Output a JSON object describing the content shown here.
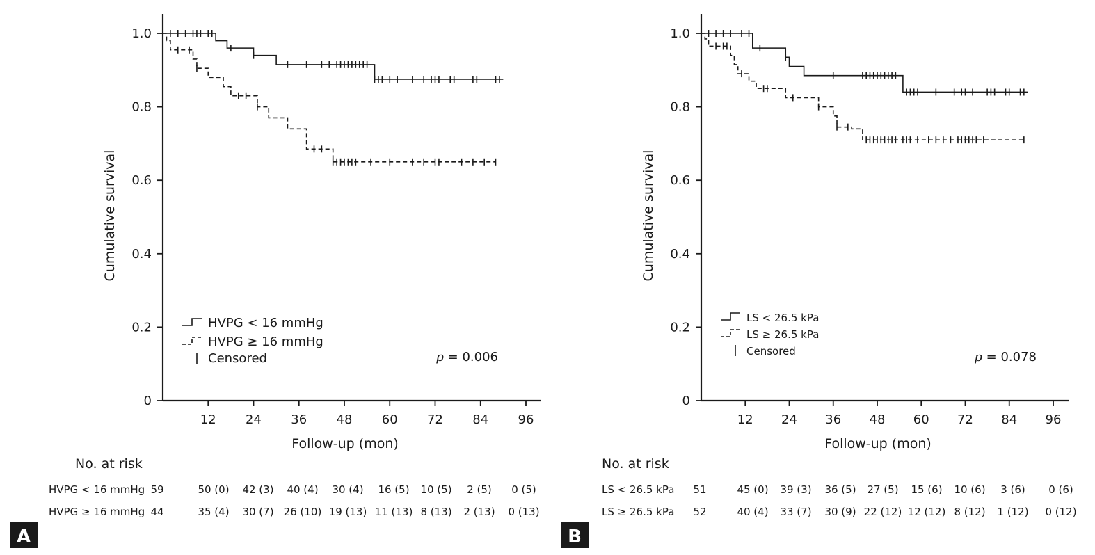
{
  "chart_data": [
    {
      "panel": "A",
      "type": "line",
      "subtype": "kaplan-meier",
      "xlabel": "Follow-up (mon)",
      "ylabel": "Cumulative survival",
      "xlim": [
        0,
        96
      ],
      "ylim": [
        0,
        1.0
      ],
      "xticks": [
        12,
        24,
        36,
        48,
        60,
        72,
        84,
        96
      ],
      "yticks": [
        0,
        0.2,
        0.4,
        0.6,
        0.8,
        1.0
      ],
      "ytick_labels": [
        "0",
        "0.2",
        "0.4",
        "0.6",
        "0.8",
        "1.0"
      ],
      "p_value_label": "p",
      "p_value_text": "= 0.006",
      "legend_position": "bottom-left",
      "legend": [
        "HVPG < 16 mmHg",
        "HVPG ≥ 16 mmHg",
        "Censored"
      ],
      "series": [
        {
          "name": "HVPG < 16 mmHg",
          "style": "solid",
          "steps": [
            [
              0,
              1.0
            ],
            [
              14,
              0.98
            ],
            [
              17,
              0.96
            ],
            [
              24,
              0.94
            ],
            [
              30,
              0.915
            ],
            [
              56,
              0.875
            ],
            [
              90,
              0.875
            ]
          ],
          "censored": [
            2,
            4,
            6,
            8,
            9,
            10,
            12,
            13,
            18,
            24,
            33,
            38,
            42,
            44,
            46,
            47,
            48,
            49,
            50,
            51,
            52,
            53,
            54,
            56,
            57,
            58,
            60,
            62,
            66,
            69,
            71,
            72,
            73,
            76,
            77,
            82,
            83,
            88,
            89
          ]
        },
        {
          "name": "HVPG ≥ 16 mmHg",
          "style": "dashed",
          "steps": [
            [
              0,
              1.0
            ],
            [
              1,
              0.98
            ],
            [
              2,
              0.955
            ],
            [
              8,
              0.93
            ],
            [
              9,
              0.905
            ],
            [
              12,
              0.88
            ],
            [
              16,
              0.855
            ],
            [
              18,
              0.83
            ],
            [
              25,
              0.8
            ],
            [
              28,
              0.77
            ],
            [
              33,
              0.74
            ],
            [
              38,
              0.685
            ],
            [
              45,
              0.65
            ],
            [
              88,
              0.65
            ]
          ],
          "censored": [
            4,
            7,
            9,
            20,
            22,
            25,
            40,
            42,
            45,
            46,
            47,
            48,
            49,
            50,
            51,
            55,
            60,
            66,
            69,
            72,
            73,
            79,
            82,
            85,
            88
          ]
        }
      ],
      "risk_table": {
        "title": "No. at risk",
        "rows": [
          {
            "label": "HVPG < 16 mmHg",
            "values": [
              "59",
              "50 (0)",
              "42 (3)",
              "40 (4)",
              "30 (4)",
              "16 (5)",
              "10 (5)",
              "2 (5)",
              "0 (5)"
            ]
          },
          {
            "label": "HVPG ≥ 16 mmHg",
            "values": [
              "44",
              "35 (4)",
              "30 (7)",
              "26 (10)",
              "19 (13)",
              "11 (13)",
              "8 (13)",
              "2 (13)",
              "0 (13)"
            ]
          }
        ]
      }
    },
    {
      "panel": "B",
      "type": "line",
      "subtype": "kaplan-meier",
      "xlabel": "Follow-up (mon)",
      "ylabel": "Cumulative survival",
      "xlim": [
        0,
        96
      ],
      "ylim": [
        0,
        1.0
      ],
      "xticks": [
        12,
        24,
        36,
        48,
        60,
        72,
        84,
        96
      ],
      "yticks": [
        0,
        0.2,
        0.4,
        0.6,
        0.8,
        1.0
      ],
      "ytick_labels": [
        "0",
        "0.2",
        "0.4",
        "0.6",
        "0.8",
        "1.0"
      ],
      "p_value_label": "p",
      "p_value_text": "= 0.078",
      "legend_position": "bottom-left",
      "legend": [
        "LS < 26.5 kPa",
        "LS ≥ 26.5 kPa",
        "Censored"
      ],
      "series": [
        {
          "name": "LS < 26.5 kPa",
          "style": "solid",
          "steps": [
            [
              0,
              1.0
            ],
            [
              14,
              0.96
            ],
            [
              17,
              0.96
            ],
            [
              23,
              0.935
            ],
            [
              24,
              0.91
            ],
            [
              28,
              0.885
            ],
            [
              55,
              0.84
            ],
            [
              89,
              0.84
            ]
          ],
          "censored": [
            2,
            4,
            6,
            8,
            11,
            13,
            16,
            23,
            36,
            44,
            45,
            46,
            47,
            48,
            49,
            50,
            51,
            52,
            53,
            56,
            57,
            58,
            59,
            64,
            69,
            71,
            72,
            74,
            78,
            79,
            80,
            83,
            84,
            87,
            88
          ]
        },
        {
          "name": "LS ≥ 26.5 kPa",
          "style": "dashed",
          "steps": [
            [
              0,
              1.0
            ],
            [
              1,
              0.985
            ],
            [
              2,
              0.965
            ],
            [
              8,
              0.94
            ],
            [
              9,
              0.915
            ],
            [
              10,
              0.89
            ],
            [
              13,
              0.87
            ],
            [
              15,
              0.85
            ],
            [
              23,
              0.825
            ],
            [
              32,
              0.8
            ],
            [
              36,
              0.775
            ],
            [
              37,
              0.745
            ],
            [
              41,
              0.74
            ],
            [
              44,
              0.71
            ],
            [
              88,
              0.71
            ]
          ],
          "censored": [
            4,
            6,
            7,
            11,
            17,
            18,
            25,
            32,
            37,
            40,
            45,
            46,
            47,
            48,
            49,
            50,
            51,
            52,
            53,
            55,
            56,
            57,
            59,
            62,
            64,
            66,
            68,
            70,
            71,
            72,
            73,
            74,
            75,
            77,
            88
          ]
        }
      ],
      "risk_table": {
        "title": "No. at risk",
        "rows": [
          {
            "label": "LS < 26.5 kPa",
            "values": [
              "51",
              "45 (0)",
              "39 (3)",
              "36 (5)",
              "27 (5)",
              "15 (6)",
              "10 (6)",
              "3 (6)",
              "0 (6)"
            ]
          },
          {
            "label": "LS ≥ 26.5 kPa",
            "values": [
              "52",
              "40 (4)",
              "33 (7)",
              "30 (9)",
              "22 (12)",
              "12 (12)",
              "8 (12)",
              "1 (12)",
              "0 (12)"
            ]
          }
        ]
      }
    }
  ]
}
